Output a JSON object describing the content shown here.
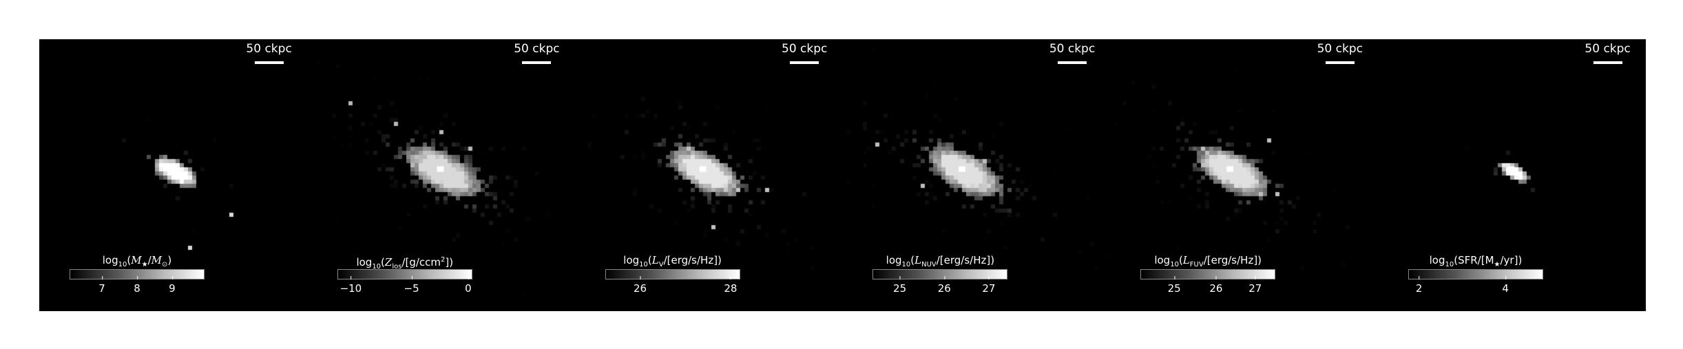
{
  "figure": {
    "panels": [
      {
        "id": "stellar-mass",
        "scalebar": "50 ckpc",
        "colorbar": {
          "label_parts": [
            "log",
            "10",
            "(",
            "M",
            "★",
            "/",
            "M",
            "⊙",
            ")"
          ],
          "ticks": [
            "7",
            "8",
            "9"
          ],
          "tick_positions": [
            0.24,
            0.5,
            0.76
          ]
        },
        "image": {
          "center": [
            0.5,
            0.48
          ],
          "spread": 0.19,
          "density": 0.35,
          "peak": 1.0
        }
      },
      {
        "id": "metallicity",
        "scalebar": "50 ckpc",
        "colorbar": {
          "label_parts": [
            "log",
            "10",
            "(",
            "Z",
            "los",
            "/[g/ccm",
            "2",
            "])"
          ],
          "ticks": [
            "−10",
            "−5",
            "0"
          ],
          "tick_positions": [
            0.1,
            0.55,
            0.97
          ]
        },
        "image": {
          "center": [
            0.5,
            0.48
          ],
          "spread": 0.32,
          "density": 0.8,
          "peak": 0.85
        }
      },
      {
        "id": "luminosity-v",
        "scalebar": "50 ckpc",
        "colorbar": {
          "label_parts": [
            "log",
            "10",
            "(",
            "L",
            "V",
            "/[erg/s/Hz])"
          ],
          "ticks": [
            "26",
            "28"
          ],
          "tick_positions": [
            0.26,
            0.93
          ]
        },
        "image": {
          "center": [
            0.48,
            0.48
          ],
          "spread": 0.3,
          "density": 0.65,
          "peak": 0.9
        }
      },
      {
        "id": "luminosity-nuv",
        "scalebar": "50 ckpc",
        "colorbar": {
          "label_parts": [
            "log",
            "10",
            "(",
            "L",
            "NUV",
            "/[erg/s/Hz])"
          ],
          "ticks": [
            "25",
            "26",
            "27"
          ],
          "tick_positions": [
            0.2,
            0.53,
            0.86
          ]
        },
        "image": {
          "center": [
            0.45,
            0.48
          ],
          "spread": 0.31,
          "density": 0.7,
          "peak": 0.88
        }
      },
      {
        "id": "luminosity-fuv",
        "scalebar": "50 ckpc",
        "colorbar": {
          "label_parts": [
            "log",
            "10",
            "(",
            "L",
            "FUV",
            "/[erg/s/Hz])"
          ],
          "ticks": [
            "25",
            "26",
            "27"
          ],
          "tick_positions": [
            0.25,
            0.56,
            0.85
          ]
        },
        "image": {
          "center": [
            0.45,
            0.48
          ],
          "spread": 0.31,
          "density": 0.7,
          "peak": 0.88
        }
      },
      {
        "id": "sfr",
        "scalebar": "50 ckpc",
        "colorbar": {
          "label_parts": [
            "log",
            "10",
            "(SFR/[M",
            "★",
            "/yr])"
          ],
          "ticks": [
            "2",
            "4"
          ],
          "tick_positions": [
            0.08,
            0.72
          ]
        },
        "image": {
          "center": [
            0.5,
            0.48
          ],
          "spread": 0.13,
          "density": 0.15,
          "peak": 1.0
        }
      }
    ],
    "colors": {
      "background": "#000000",
      "page": "#ffffff",
      "text": "#ffffff"
    }
  }
}
